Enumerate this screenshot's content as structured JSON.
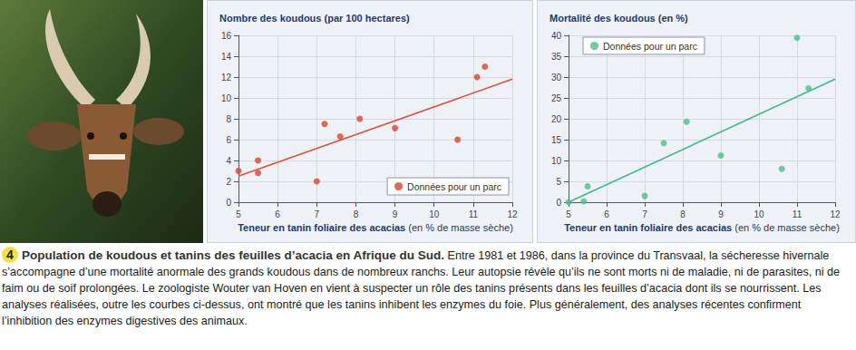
{
  "chart_data": [
    {
      "type": "scatter",
      "title": "Nombre des koudous (par 100 hectares)",
      "x_label": "Teneur en tanin foliaire des acacias (en % de masse sèche)",
      "xlim": [
        5,
        12
      ],
      "xticks": [
        5,
        6,
        7,
        8,
        9,
        10,
        11,
        12
      ],
      "ylim": [
        0,
        16
      ],
      "yticks": [
        0,
        2,
        4,
        6,
        8,
        10,
        12,
        14,
        16
      ],
      "grid": true,
      "legend": "lower right",
      "series": [
        {
          "name": "Données pour un parc",
          "type": "scatter",
          "marker": "circle",
          "color": "#e2412b",
          "x": [
            5.0,
            5.5,
            5.5,
            7.0,
            7.2,
            7.6,
            8.1,
            9.0,
            10.6,
            11.1,
            11.3
          ],
          "values": [
            3.0,
            2.8,
            4.0,
            2.0,
            7.5,
            6.3,
            8.0,
            7.1,
            6.0,
            12.0,
            13.0
          ]
        },
        {
          "type": "line",
          "line_style": "solid",
          "color": "#e0503a",
          "x": [
            5,
            12
          ],
          "values": [
            2.5,
            11.8
          ]
        }
      ]
    },
    {
      "type": "scatter",
      "title": "Mortalité des koudous (en %)",
      "x_label": "Teneur en tanin foliaire des acacias (en % de masse sèche)",
      "xlim": [
        5,
        12
      ],
      "xticks": [
        5,
        6,
        7,
        8,
        9,
        10,
        11,
        12
      ],
      "ylim": [
        0,
        40
      ],
      "yticks": [
        0,
        5,
        10,
        15,
        20,
        25,
        30,
        35,
        40
      ],
      "grid": true,
      "legend": "upper left",
      "series": [
        {
          "name": "Données pour un parc",
          "type": "scatter",
          "marker": "circle",
          "color": "#4cbf8a",
          "x": [
            5.0,
            5.4,
            5.5,
            7.0,
            7.5,
            8.1,
            9.0,
            10.6,
            11.0,
            11.3
          ],
          "values": [
            0,
            0.2,
            3.8,
            1.5,
            14.2,
            19.3,
            11.2,
            8.0,
            39.4,
            27.3
          ]
        },
        {
          "type": "line",
          "line_style": "solid",
          "color": "#3dbb84",
          "x": [
            5,
            12
          ],
          "values": [
            0,
            29.5
          ]
        }
      ]
    }
  ],
  "caption": {
    "number": "4",
    "title": "Population de koudous et tanins des feuilles d’acacia en Afrique du Sud.",
    "text": "Entre 1981 et 1986, dans la province du Transvaal, la sécheresse hivernale s’accompagne d’une mortalité anormale des grands koudous dans de nombreux ranchs. Leur autopsie révèle qu’ils ne sont morts ni de maladie, ni de parasites, ni de faim ou de soif prolongées. Le zoologiste Wouter van Hoven en vient à suspecter un rôle des tanins présents dans les feuilles d’acacia dont ils se nourrissent. Les analyses réalisées, outre les courbes ci-dessus, ont montré que les tanins inhibent les enzymes du foie. Plus généralement, des analyses récentes confirment l’inhibition des enzymes digestives des animaux."
  }
}
